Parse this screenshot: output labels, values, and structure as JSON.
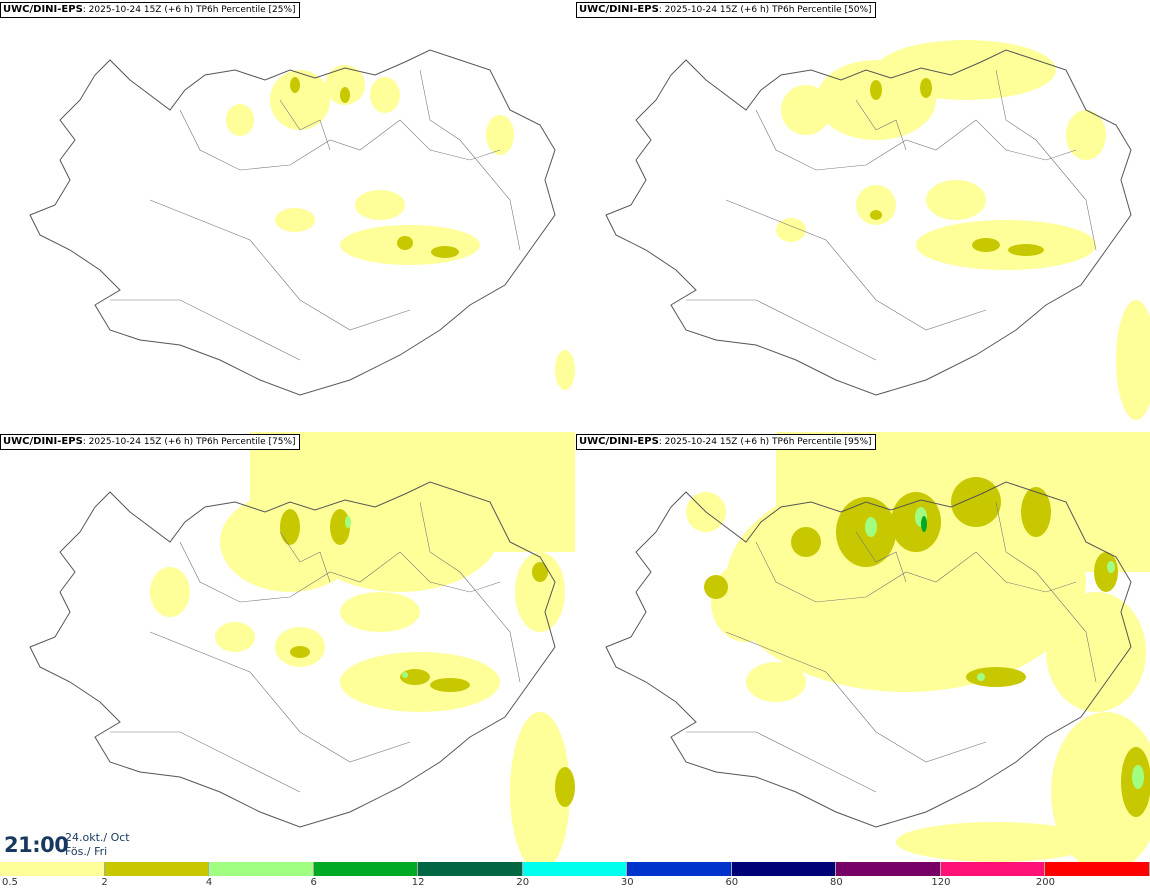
{
  "panels": [
    {
      "model": "UWC/DINI-EPS",
      "run": "2025-10-24 15Z (+6 h)",
      "product": "TP6h Percentile [25%]"
    },
    {
      "model": "UWC/DINI-EPS",
      "run": "2025-10-24 15Z (+6 h)",
      "product": "TP6h Percentile [50%]"
    },
    {
      "model": "UWC/DINI-EPS",
      "run": "2025-10-24 15Z (+6 h)",
      "product": "TP6h Percentile [75%]"
    },
    {
      "model": "UWC/DINI-EPS",
      "run": "2025-10-24 15Z (+6 h)",
      "product": "TP6h Percentile [95%]"
    }
  ],
  "valid_time": {
    "time": "21:00",
    "date_line1": "24.okt./ Oct",
    "date_line2": "Fös./ Fri"
  },
  "legend": {
    "labels": [
      "0.5",
      "2",
      "4",
      "6",
      "12",
      "20",
      "30",
      "60",
      "80",
      "120",
      "200"
    ],
    "colors": [
      "#ffff99",
      "#c8c800",
      "#a0ff80",
      "#00aa22",
      "#006644",
      "#00ffee",
      "#0033cc",
      "#000077",
      "#770066",
      "#ff1177",
      "#ff0000"
    ]
  }
}
